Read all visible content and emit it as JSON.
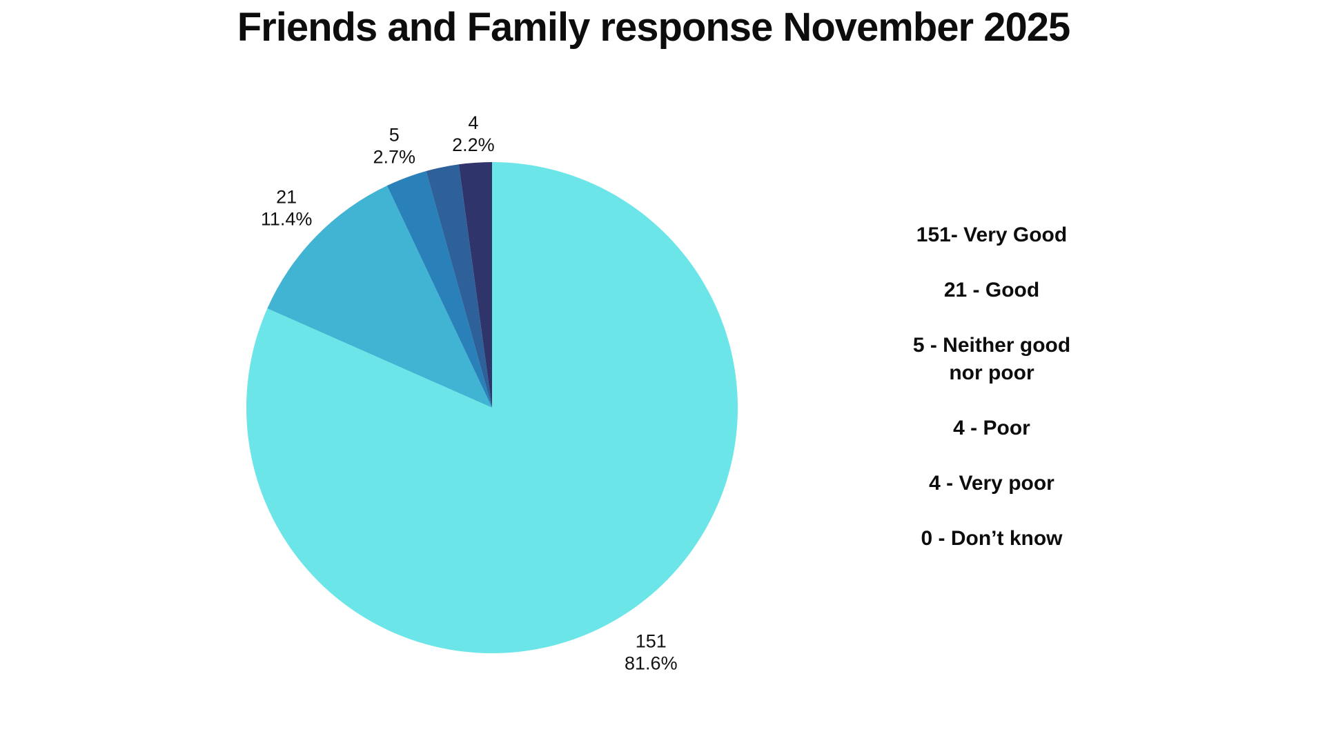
{
  "title": "Friends and Family response November 2025",
  "legend": {
    "items": [
      "151- Very Good",
      "21 - Good",
      "5 - Neither good\nnor poor",
      "4 - Poor",
      "4 - Very poor",
      "0 - Don’t know"
    ]
  },
  "chart_data": {
    "type": "pie",
    "title": "Friends and Family response November 2025",
    "start_angle_deg": 0,
    "direction": "clockwise",
    "legend_position": "right",
    "background_color": "#ffffff",
    "slices": [
      {
        "label": "Very Good",
        "value": 151,
        "pct_label": "81.6%",
        "color": "#6CE5E8",
        "show_label": true,
        "label_r": 422
      },
      {
        "label": "Good",
        "value": 21,
        "pct_label": "11.4%",
        "color": "#41B4D3",
        "show_label": true,
        "label_r": 416
      },
      {
        "label": "Neither good nor poor",
        "value": 5,
        "pct_label": "2.7%",
        "color": "#2A80B9",
        "show_label": true,
        "label_r": 406
      },
      {
        "label": "Poor",
        "value": 4,
        "pct_label": "2.2%",
        "color": "#2E6199",
        "show_label": false,
        "label_r": 410
      },
      {
        "label": "Very poor",
        "value": 4,
        "pct_label": "2.2%",
        "color": "#2F346B",
        "show_label": true,
        "label_r": 399
      },
      {
        "label": "Don’t know",
        "value": 0,
        "pct_label": null,
        "color": null,
        "show_label": false,
        "label_r": 0
      }
    ]
  }
}
